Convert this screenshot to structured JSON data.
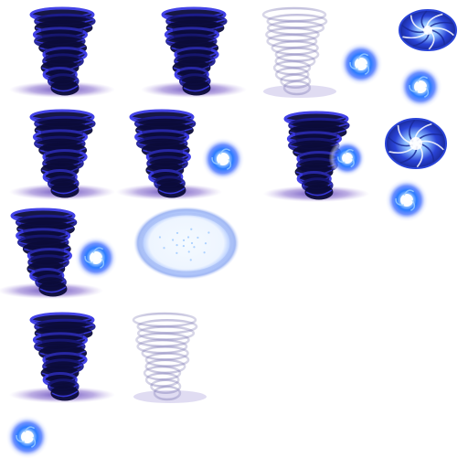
{
  "sprite_sheet": {
    "background": "#ffffff",
    "palette": {
      "tornado_dark": "#0b0b3a",
      "tornado_mid": "#1d1d8f",
      "tornado_bright": "#3a3ae6",
      "shadow_purple": "#7a5cc8",
      "orb_core": "#ffffff",
      "orb_mid": "#2a7bff",
      "orb_glow": "#cfd9ff",
      "ghost_tornado": "#9c98c8",
      "portal_blue": "#2a44d8",
      "portal_light": "#e6f0ff"
    },
    "sprites": [
      {
        "kind": "tornado-frame",
        "variant": "dark"
      },
      {
        "kind": "tornado-frame",
        "variant": "dark"
      },
      {
        "kind": "tornado-frame",
        "variant": "faded"
      },
      {
        "kind": "energy-orb",
        "variant": "glow"
      },
      {
        "kind": "swirl-portal",
        "variant": "ring"
      },
      {
        "kind": "energy-orb",
        "variant": "glow"
      },
      {
        "kind": "tornado-frame",
        "variant": "dark"
      },
      {
        "kind": "tornado-frame",
        "variant": "dark-leaning"
      },
      {
        "kind": "energy-orb",
        "variant": "glow"
      },
      {
        "kind": "tornado-frame",
        "variant": "dark"
      },
      {
        "kind": "energy-orb",
        "variant": "glow"
      },
      {
        "kind": "swirl-portal",
        "variant": "bright-ring"
      },
      {
        "kind": "energy-orb",
        "variant": "glow"
      },
      {
        "kind": "tornado-frame",
        "variant": "dark-leaning"
      },
      {
        "kind": "energy-orb",
        "variant": "glow"
      },
      {
        "kind": "light-portal",
        "variant": "pale"
      },
      {
        "kind": "tornado-frame",
        "variant": "dark"
      },
      {
        "kind": "tornado-frame",
        "variant": "faded"
      },
      {
        "kind": "energy-orb",
        "variant": "glow"
      }
    ]
  }
}
